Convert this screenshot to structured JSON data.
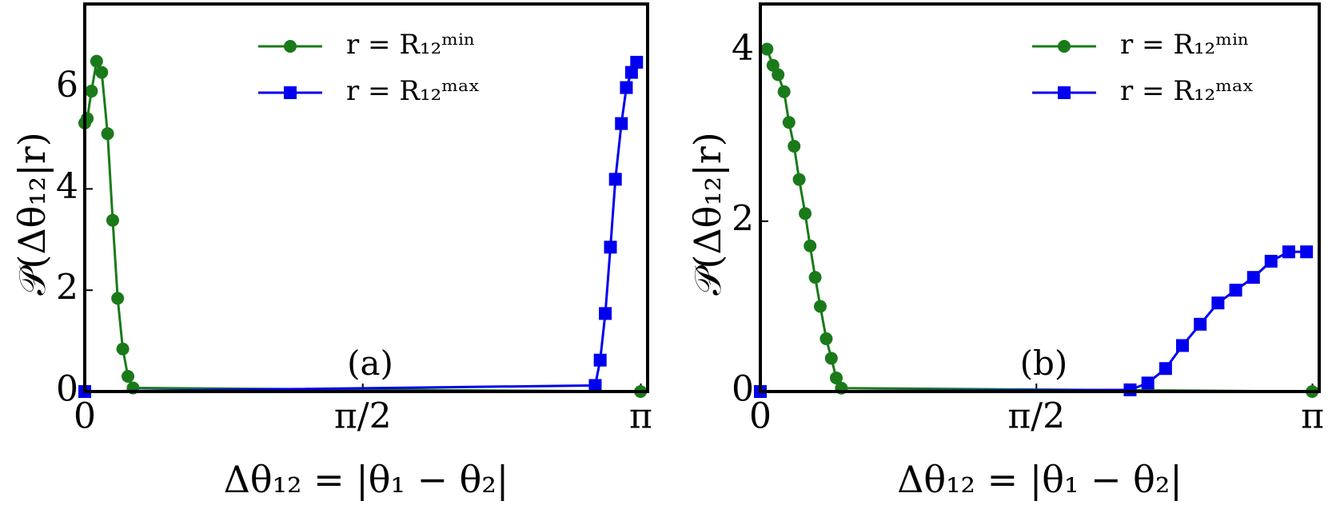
{
  "chart_data": [
    {
      "type": "line",
      "annotation": "(a)",
      "xlabel": "Δθ₁₂ = |θ₁ − θ₂|",
      "ylabel": "𝒫(Δθ₁₂|r)",
      "xlim": [
        0,
        3.18
      ],
      "ylim": [
        0,
        7.65
      ],
      "xticks": [
        {
          "value": 0,
          "label": "0"
        },
        {
          "value": 1.5708,
          "label": "π/2"
        },
        {
          "value": 3.1416,
          "label": "π"
        }
      ],
      "yticks": [
        0,
        2,
        4,
        6
      ],
      "series": [
        {
          "name": "r = R₁₂ᵐⁱⁿ",
          "color": "#1a7a1a",
          "marker": "circle",
          "x": [
            0,
            0.014,
            0.038,
            0.067,
            0.096,
            0.129,
            0.158,
            0.186,
            0.215,
            0.244,
            0.273,
            3.14
          ],
          "values": [
            5.3,
            5.39,
            5.93,
            6.52,
            6.3,
            5.09,
            3.38,
            1.84,
            0.84,
            0.3,
            0.07,
            0
          ]
        },
        {
          "name": "r = R₁₂ᵐᵃˣ",
          "color": "#0000ee",
          "marker": "square",
          "x": [
            0,
            2.884,
            2.912,
            2.941,
            2.97,
            2.998,
            3.032,
            3.06,
            3.089,
            3.118
          ],
          "values": [
            0,
            0.12,
            0.62,
            1.54,
            2.85,
            4.19,
            5.29,
            6.0,
            6.3,
            6.5
          ]
        }
      ]
    },
    {
      "type": "line",
      "annotation": "(b)",
      "xlabel": "Δθ₁₂ = |θ₁ − θ₂|",
      "ylabel": "𝒫(Δθ₁₂|r)",
      "xlim": [
        0,
        3.18
      ],
      "ylim": [
        0,
        4.55
      ],
      "xticks": [
        {
          "value": 0,
          "label": "0"
        },
        {
          "value": 1.5708,
          "label": "π/2"
        },
        {
          "value": 3.1416,
          "label": "π"
        }
      ],
      "yticks": [
        0,
        2,
        4
      ],
      "series": [
        {
          "name": "r = R₁₂ᵐⁱⁿ",
          "color": "#1a7a1a",
          "marker": "circle",
          "x": [
            0.038,
            0.072,
            0.101,
            0.135,
            0.163,
            0.192,
            0.221,
            0.255,
            0.283,
            0.312,
            0.341,
            0.375,
            0.404,
            0.432,
            0.461,
            3.14
          ],
          "values": [
            4.02,
            3.83,
            3.72,
            3.52,
            3.16,
            2.88,
            2.49,
            2.09,
            1.71,
            1.34,
            1.0,
            0.62,
            0.39,
            0.16,
            0.04,
            0
          ]
        },
        {
          "name": "r = R₁₂ᵐᵃˣ",
          "color": "#0000ee",
          "marker": "square",
          "x": [
            0,
            2.104,
            2.205,
            2.306,
            2.402,
            2.503,
            2.604,
            2.705,
            2.806,
            2.906,
            3.007,
            3.108
          ],
          "values": [
            0,
            0.02,
            0.1,
            0.27,
            0.54,
            0.79,
            1.04,
            1.19,
            1.34,
            1.53,
            1.64,
            1.64
          ]
        }
      ]
    }
  ]
}
